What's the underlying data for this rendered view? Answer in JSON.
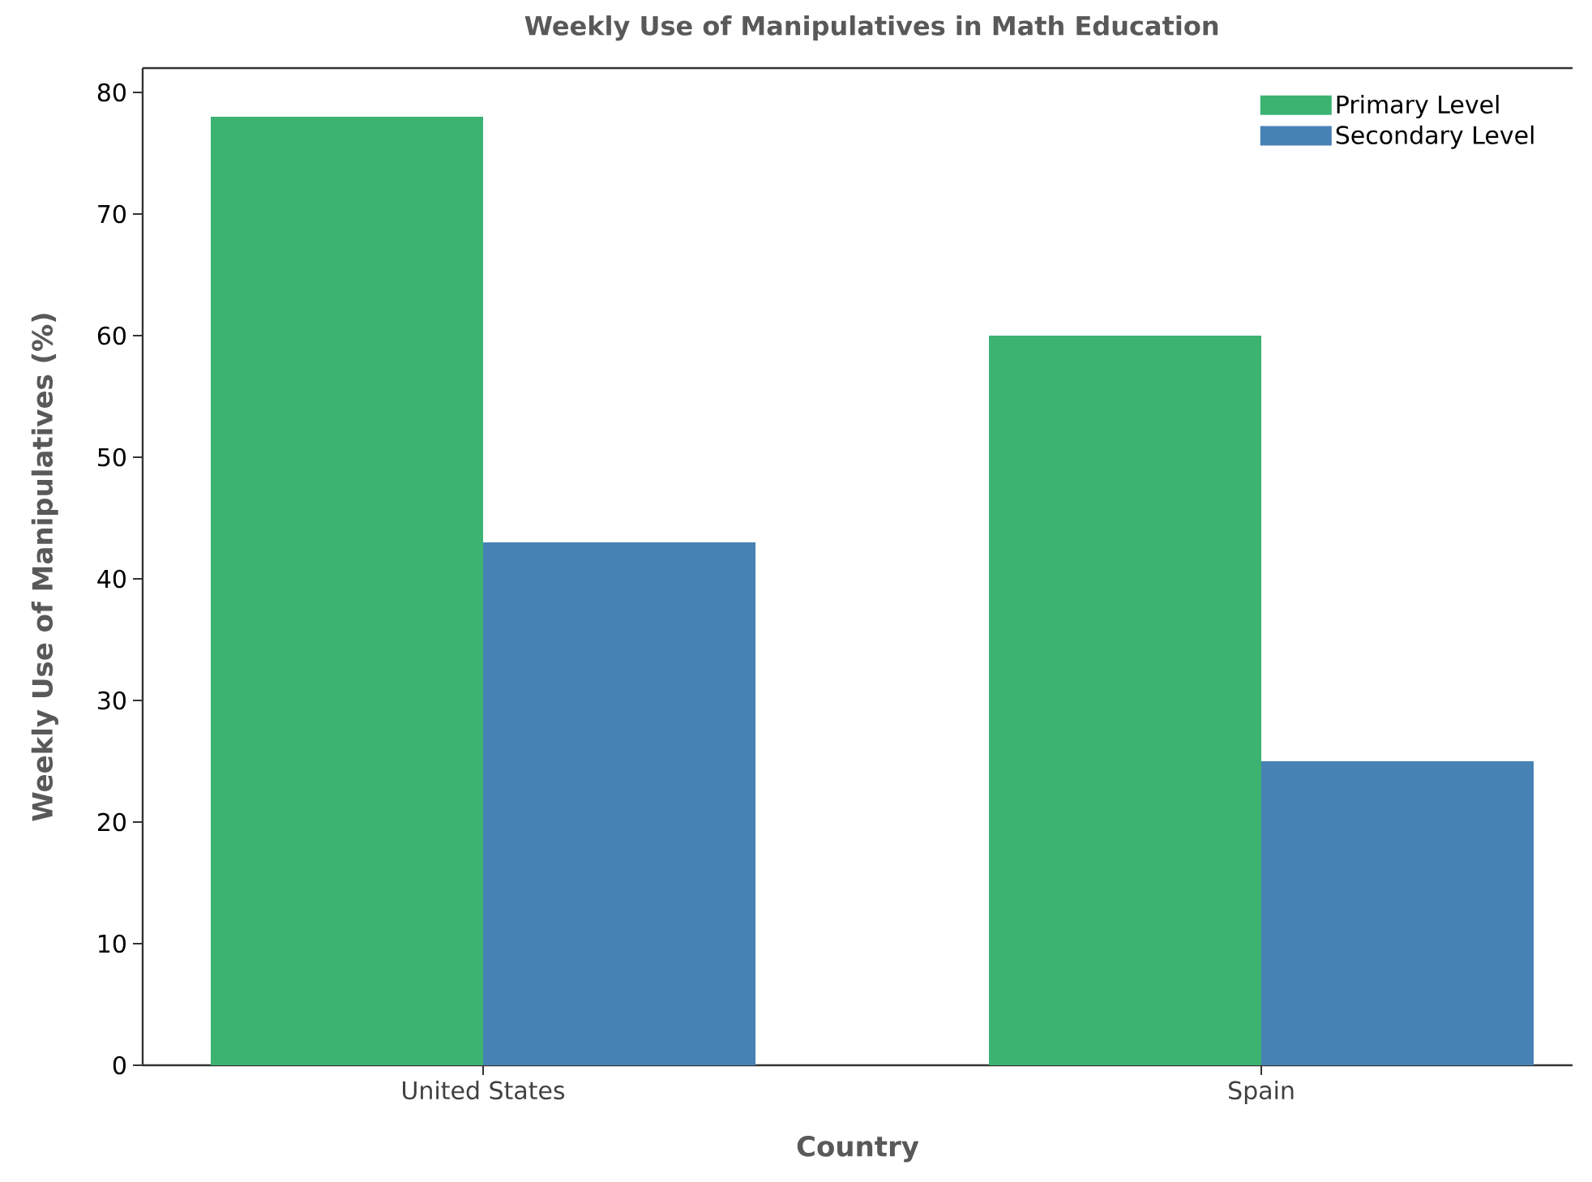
{
  "chart_data": {
    "type": "bar",
    "title": "Weekly Use of Manipulatives in Math Education",
    "xlabel": "Country",
    "ylabel": "Weekly Use of Manipulatives (%)",
    "categories": [
      "United States",
      "Spain"
    ],
    "series": [
      {
        "name": "Primary Level",
        "color": "#3cb371",
        "values": [
          78,
          60
        ]
      },
      {
        "name": "Secondary Level",
        "color": "#4682b4",
        "values": [
          43,
          25
        ]
      }
    ],
    "ylim": [
      0,
      82
    ],
    "yticks": [
      0,
      10,
      20,
      30,
      40,
      50,
      60,
      70,
      80
    ],
    "legend": "top right"
  }
}
